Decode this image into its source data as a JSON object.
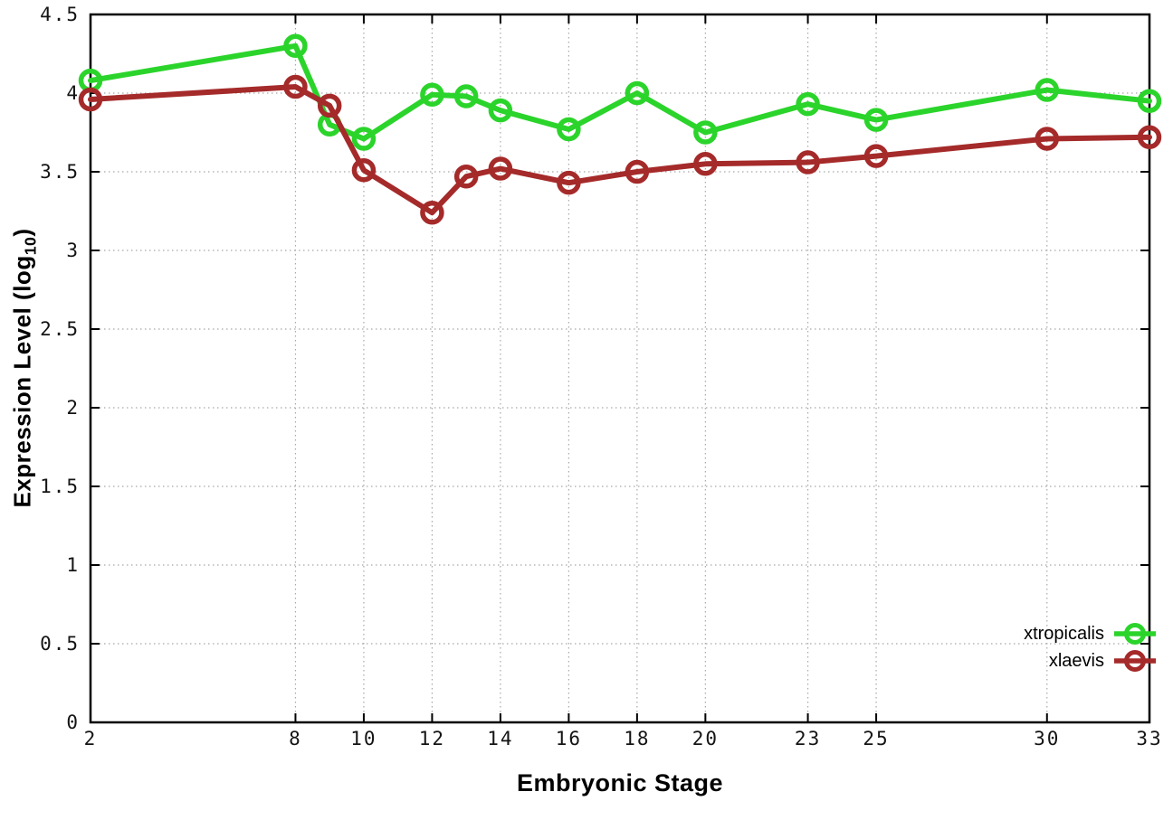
{
  "chart_data": {
    "type": "line",
    "title": "",
    "xlabel": "Embryonic Stage",
    "ylabel": "Expression Level (log10)",
    "ylabel_prefix": "Expression Level (log",
    "ylabel_sub": "10",
    "ylabel_suffix": ")",
    "xlim": [
      2,
      33
    ],
    "ylim": [
      0,
      4.5
    ],
    "grid": true,
    "grid_style": "dotted",
    "grid_color": "#a8a8a8",
    "axis_color": "#000000",
    "legend_position": "bottom-right",
    "x": [
      2,
      8,
      9,
      10,
      12,
      13,
      14,
      16,
      18,
      20,
      23,
      25,
      30,
      33
    ],
    "x_ticks": [
      2,
      8,
      10,
      12,
      14,
      16,
      18,
      20,
      23,
      25,
      30,
      33
    ],
    "x_tick_labels": [
      "2",
      "8",
      "10",
      "12",
      "14",
      "16",
      "18",
      "20",
      "23",
      "25",
      "30",
      "33"
    ],
    "y_ticks": [
      0,
      0.5,
      1,
      1.5,
      2,
      2.5,
      3,
      3.5,
      4,
      4.5
    ],
    "y_tick_labels": [
      "0",
      "0.5",
      "1",
      "1.5",
      "2",
      "2.5",
      "3",
      "3.5",
      "4",
      "4.5"
    ],
    "series": [
      {
        "name": "xtropicalis",
        "color": "#2BD42B",
        "values": [
          4.08,
          4.3,
          3.8,
          3.71,
          3.99,
          3.98,
          3.89,
          3.77,
          4.0,
          3.75,
          3.93,
          3.83,
          4.02,
          3.95
        ]
      },
      {
        "name": "xlaevis",
        "color": "#A52A2A",
        "values": [
          3.96,
          4.04,
          3.92,
          3.51,
          3.24,
          3.47,
          3.52,
          3.43,
          3.5,
          3.55,
          3.56,
          3.6,
          3.71,
          3.72
        ]
      }
    ]
  }
}
